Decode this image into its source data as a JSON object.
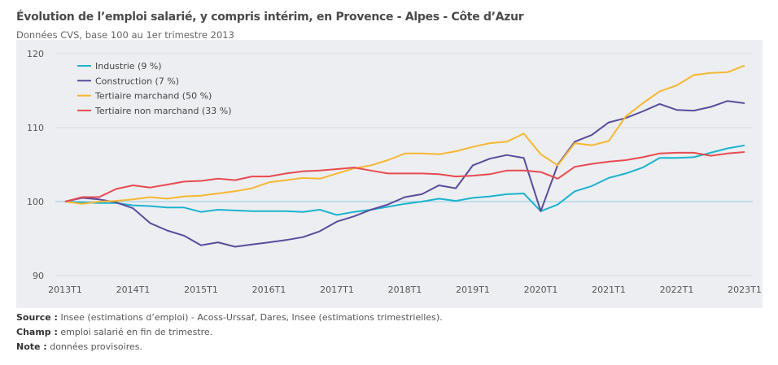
{
  "header": {
    "title": "Évolution de l’emploi salarié, y compris intérim, en Provence - Alpes - Côte d’Azur",
    "subtitle": "Données CVS, base 100 au 1er trimestre 2013"
  },
  "footer": {
    "source_label": "Source :",
    "source_text": " Insee (estimations d’emploi) - Acoss-Urssaf, Dares, Insee (estimations trimestrielles).",
    "champ_label": "Champ :",
    "champ_text": " emploi salarié en fin de trimestre.",
    "note_label": "Note :",
    "note_text": " données provisoires."
  },
  "chart_data": {
    "type": "line",
    "title": "Évolution de l’emploi salarié, y compris intérim, en Provence - Alpes - Côte d’Azur",
    "subtitle": "Données CVS, base 100 au 1er trimestre 2013",
    "ylim": [
      90,
      120
    ],
    "yticks": [
      90,
      100,
      110,
      120
    ],
    "xtick_labels": [
      "2013T1",
      "2014T1",
      "2015T1",
      "2016T1",
      "2017T1",
      "2018T1",
      "2019T1",
      "2020T1",
      "2021T1",
      "2022T1",
      "2023T1"
    ],
    "x_start": "2013T1",
    "x_end": "2023T1",
    "frequency": "quarterly",
    "grid": true,
    "reference_line": 100,
    "legend": "top-left",
    "series": [
      {
        "name": "Industrie (9 %)",
        "color": "#1cb3cf",
        "values": [
          100,
          99.9,
          99.8,
          99.8,
          99.5,
          99.4,
          99.2,
          99.2,
          98.6,
          98.9,
          98.8,
          98.7,
          98.7,
          98.7,
          98.6,
          98.9,
          98.2,
          98.6,
          98.9,
          99.3,
          99.7,
          100.0,
          100.4,
          100.1,
          100.5,
          100.7,
          101.0,
          101.1,
          98.7,
          99.6,
          101.4,
          102.1,
          103.2,
          103.8,
          104.6,
          105.9,
          105.9,
          106.0,
          106.6,
          107.2,
          107.6
        ]
      },
      {
        "name": "Construction (7 %)",
        "color": "#5a4c9c",
        "values": [
          100,
          100.5,
          100.3,
          99.9,
          99.1,
          97.1,
          96.1,
          95.4,
          94.1,
          94.5,
          93.9,
          94.2,
          94.5,
          94.8,
          95.2,
          96.0,
          97.3,
          98.0,
          98.9,
          99.6,
          100.6,
          101.0,
          102.2,
          101.8,
          104.9,
          105.8,
          106.3,
          105.9,
          98.7,
          105.0,
          108.1,
          109.0,
          110.7,
          111.3,
          112.2,
          113.2,
          112.4,
          112.3,
          112.8,
          113.6,
          113.3
        ]
      },
      {
        "name": "Tertiaire marchand (50 %)",
        "color": "#f6b732",
        "values": [
          100,
          99.7,
          100.0,
          100.1,
          100.3,
          100.6,
          100.4,
          100.7,
          100.8,
          101.1,
          101.4,
          101.8,
          102.6,
          102.9,
          103.2,
          103.1,
          103.8,
          104.5,
          104.9,
          105.6,
          106.5,
          106.5,
          106.4,
          106.8,
          107.4,
          107.9,
          108.1,
          109.2,
          106.4,
          104.9,
          107.9,
          107.6,
          108.2,
          111.5,
          113.3,
          114.9,
          115.7,
          117.1,
          117.4,
          117.5,
          118.4
        ]
      },
      {
        "name": "Tertiaire non marchand (33 %)",
        "color": "#e84a50",
        "values": [
          100,
          100.6,
          100.6,
          101.7,
          102.2,
          101.9,
          102.3,
          102.7,
          102.8,
          103.1,
          102.9,
          103.4,
          103.4,
          103.8,
          104.1,
          104.2,
          104.4,
          104.6,
          104.2,
          103.8,
          103.8,
          103.8,
          103.7,
          103.4,
          103.5,
          103.7,
          104.2,
          104.2,
          104.0,
          103.1,
          104.7,
          105.1,
          105.4,
          105.6,
          106.0,
          106.5,
          106.6,
          106.6,
          106.2,
          106.5,
          106.7
        ]
      }
    ]
  }
}
